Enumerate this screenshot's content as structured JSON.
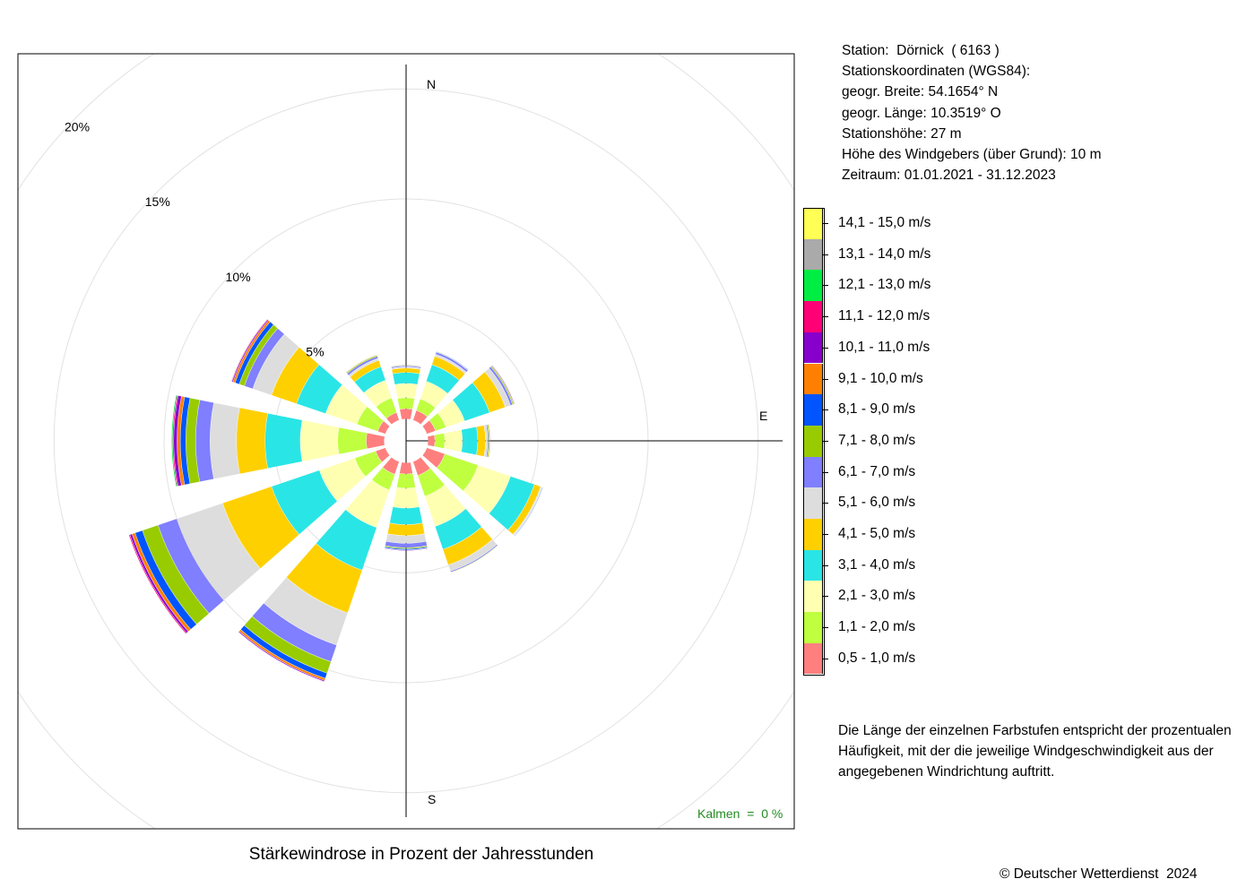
{
  "plot": {
    "title": "Stärkewindrose in Prozent der Jahresstunden",
    "calm_label": "Kalmen  =  0 %",
    "calm_color": "#228B22",
    "copyright": "© Deutscher Wetterdienst  2024"
  },
  "station": {
    "name_line": "Station:  Dörnick  ( 6163 )",
    "coords_heading": "Stationskoordinaten (WGS84):",
    "latitude": "geogr. Breite: 54.1654° N",
    "longitude": "geogr. Länge: 10.3519° O",
    "elevation": "Stationshöhe: 27 m",
    "anemometer_height": "Höhe des Windgebers (über Grund): 10 m",
    "period": "Zeitraum: 01.01.2021 - 31.12.2023"
  },
  "note": "Die Länge der einzelnen Farbstufen entspricht der prozentualen Häufigkeit, mit der die jeweilige Windgeschwindigkeit aus der angegebenen Windrichtung auftritt.",
  "chart_data": {
    "type": "windrose",
    "title": "Stärkewindrose in Prozent der Jahresstunden",
    "directions_deg": [
      0,
      30,
      60,
      90,
      120,
      150,
      180,
      210,
      240,
      270,
      300,
      330
    ],
    "compass_labels": {
      "N": "N",
      "E": "E",
      "S": "S"
    },
    "radial_ticks": [
      5,
      10,
      15,
      20
    ],
    "radial_tick_labels": [
      "5%",
      "10%",
      "15%",
      "20%"
    ],
    "radial_max": 22,
    "inner_offset": 1.0,
    "grid": true,
    "legend_position": "right",
    "classes": [
      {
        "label": "0,5 - 1,0 m/s",
        "color": "#FF7F7F"
      },
      {
        "label": "1,1 - 2,0 m/s",
        "color": "#BFFF3F"
      },
      {
        "label": "2,1 - 3,0 m/s",
        "color": "#FFFFB2"
      },
      {
        "label": "3,1 - 4,0 m/s",
        "color": "#2AE5E5"
      },
      {
        "label": "4,1 - 5,0 m/s",
        "color": "#FFD000"
      },
      {
        "label": "5,1 - 6,0 m/s",
        "color": "#DDDDDD"
      },
      {
        "label": "6,1 - 7,0 m/s",
        "color": "#7F7FFF"
      },
      {
        "label": "7,1 - 8,0 m/s",
        "color": "#99CC00"
      },
      {
        "label": "8,1 - 9,0 m/s",
        "color": "#0055FF"
      },
      {
        "label": "9,1 - 10,0 m/s",
        "color": "#FF8000"
      },
      {
        "label": "10,1 - 11,0 m/s",
        "color": "#8800CC"
      },
      {
        "label": "11,1 - 12,0 m/s",
        "color": "#FF0077"
      },
      {
        "label": "12,1 - 13,0 m/s",
        "color": "#00EE44"
      },
      {
        "label": "13,1 - 14,0 m/s",
        "color": "#AAAAAA"
      },
      {
        "label": "14,1 - 15,0 m/s",
        "color": "#FFFF55"
      }
    ],
    "series": [
      {
        "direction": "N",
        "deg": 0,
        "values": [
          0.45,
          0.5,
          0.65,
          0.5,
          0.2,
          0.05,
          0.05,
          0.02,
          0.01,
          0.01,
          0,
          0,
          0,
          0,
          0
        ]
      },
      {
        "direction": "NNE",
        "deg": 30,
        "values": [
          0.45,
          0.55,
          0.85,
          0.8,
          0.4,
          0.1,
          0.1,
          0.02,
          0.01,
          0,
          0,
          0,
          0,
          0,
          0
        ]
      },
      {
        "direction": "ENE",
        "deg": 60,
        "values": [
          0.4,
          0.5,
          0.9,
          1.2,
          0.75,
          0.25,
          0.1,
          0.05,
          0.02,
          0.01,
          0.01,
          0,
          0,
          0,
          0
        ]
      },
      {
        "direction": "E",
        "deg": 90,
        "values": [
          0.3,
          0.45,
          0.8,
          0.7,
          0.35,
          0.1,
          0.05,
          0.05,
          0.02,
          0.01,
          0,
          0,
          0,
          0,
          0
        ]
      },
      {
        "direction": "ESE",
        "deg": 120,
        "values": [
          0.85,
          1.6,
          1.55,
          1.15,
          0.3,
          0.05,
          0.02,
          0.02,
          0.01,
          0,
          0,
          0,
          0,
          0,
          0
        ]
      },
      {
        "direction": "SSE",
        "deg": 150,
        "values": [
          0.65,
          1.0,
          1.45,
          1.1,
          0.75,
          0.3,
          0.05,
          0.01,
          0,
          0,
          0,
          0,
          0,
          0,
          0
        ]
      },
      {
        "direction": "S",
        "deg": 180,
        "values": [
          0.5,
          0.65,
          0.9,
          0.75,
          0.5,
          0.35,
          0.2,
          0.05,
          0.05,
          0.02,
          0.01,
          0,
          0,
          0,
          0
        ]
      },
      {
        "direction": "SSW",
        "deg": 210,
        "values": [
          0.6,
          0.75,
          1.8,
          2.05,
          2.05,
          1.55,
          0.8,
          0.55,
          0.25,
          0.1,
          0.05,
          0.02,
          0,
          0,
          0
        ]
      },
      {
        "direction": "WSW",
        "deg": 240,
        "values": [
          0.45,
          1.0,
          1.7,
          2.3,
          2.35,
          2.2,
          0.9,
          0.75,
          0.35,
          0.15,
          0.1,
          0.05,
          0.02,
          0,
          0
        ]
      },
      {
        "direction": "W",
        "deg": 270,
        "values": [
          0.8,
          1.3,
          1.7,
          1.6,
          1.3,
          1.2,
          0.65,
          0.45,
          0.25,
          0.15,
          0.15,
          0.05,
          0.05,
          0,
          0
        ]
      },
      {
        "direction": "WNW",
        "deg": 300,
        "values": [
          0.35,
          1.0,
          1.5,
          1.4,
          1.2,
          0.9,
          0.4,
          0.25,
          0.2,
          0.1,
          0.05,
          0.03,
          0.02,
          0,
          0
        ]
      },
      {
        "direction": "NNW",
        "deg": 330,
        "values": [
          0.35,
          0.7,
          0.85,
          0.65,
          0.3,
          0.1,
          0.1,
          0.05,
          0.02,
          0.01,
          0,
          0,
          0,
          0,
          0
        ]
      }
    ]
  }
}
